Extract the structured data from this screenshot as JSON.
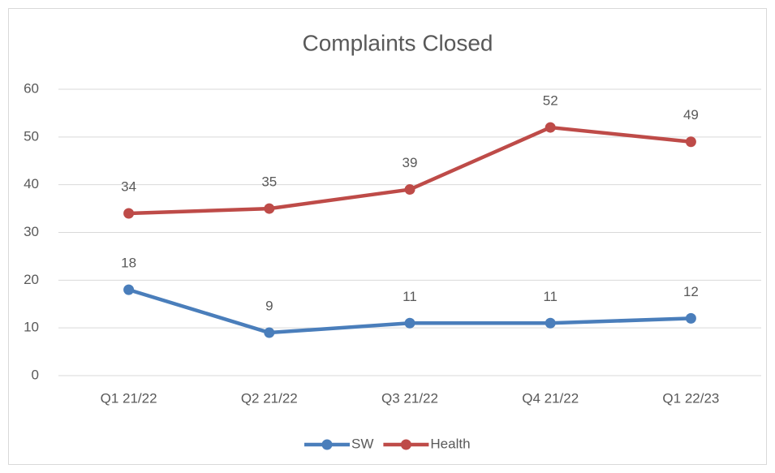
{
  "chart_data": {
    "type": "line",
    "title": "Complaints Closed",
    "categories": [
      "Q1 21/22",
      "Q2 21/22",
      "Q3 21/22",
      "Q4 21/22",
      "Q1 22/23"
    ],
    "series": [
      {
        "name": "SW",
        "color": "#4a7ebb",
        "values": [
          18,
          9,
          11,
          11,
          12
        ]
      },
      {
        "name": "Health",
        "color": "#be4b48",
        "values": [
          34,
          35,
          39,
          52,
          49
        ]
      }
    ],
    "ylim": [
      0,
      60
    ],
    "yticks": [
      0,
      10,
      20,
      30,
      40,
      50,
      60
    ],
    "grid": true,
    "legend": "bottom"
  }
}
